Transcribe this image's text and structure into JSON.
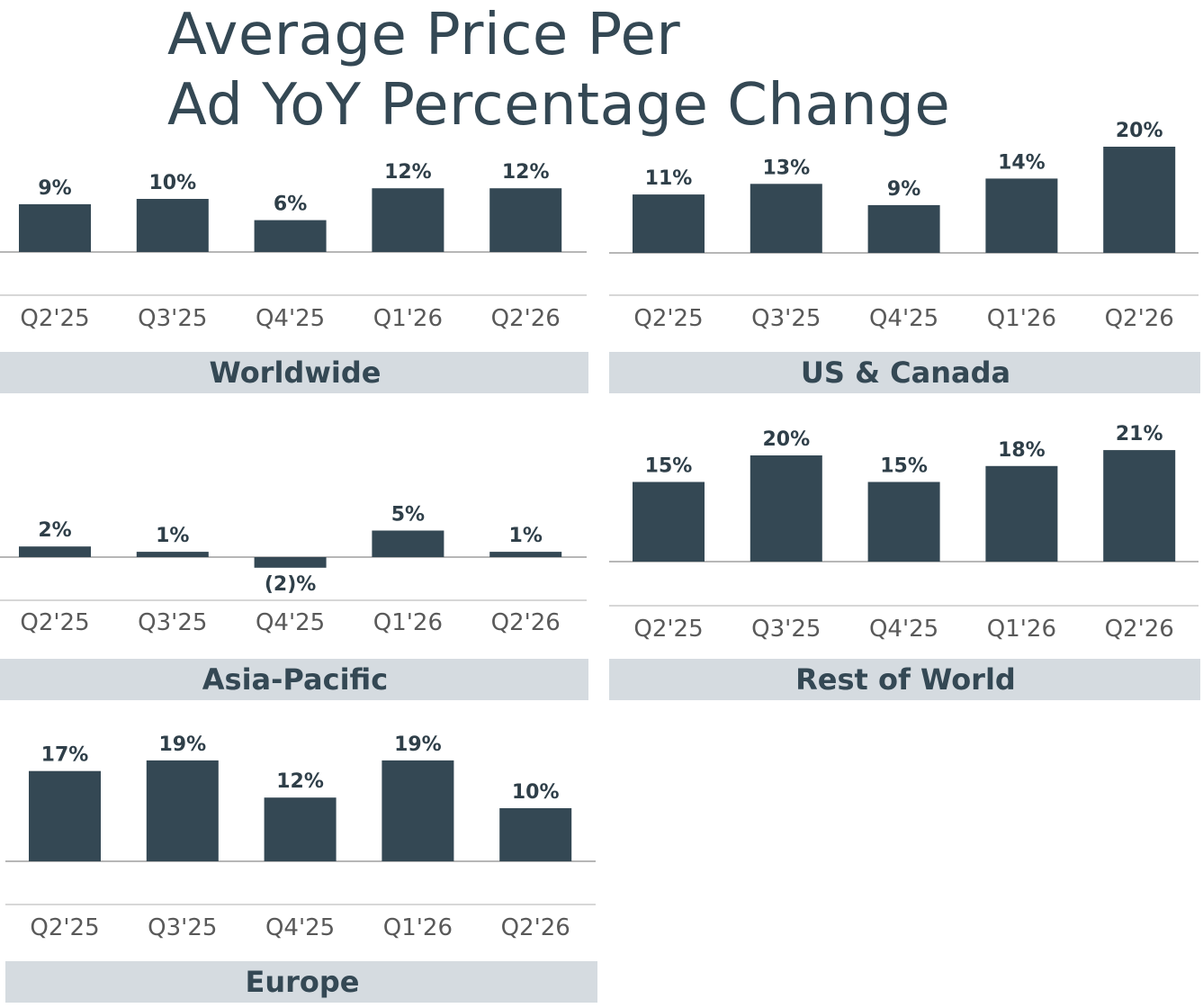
{
  "title": {
    "line1": "Average Price Per",
    "line2": "Ad YoY Percentage Change"
  },
  "colors": {
    "bar": "#344854",
    "text": "#344854",
    "band": "#d5dbe0",
    "axis": "#8c8c8c",
    "category": "#595959"
  },
  "chart_data": [
    {
      "type": "bar",
      "region": "Worldwide",
      "categories": [
        "Q2'25",
        "Q3'25",
        "Q4'25",
        "Q1'26",
        "Q2'26"
      ],
      "values": [
        9,
        10,
        6,
        12,
        12
      ],
      "labels": [
        "9%",
        "10%",
        "6%",
        "12%",
        "12%"
      ]
    },
    {
      "type": "bar",
      "region": "US & Canada",
      "categories": [
        "Q2'25",
        "Q3'25",
        "Q4'25",
        "Q1'26",
        "Q2'26"
      ],
      "values": [
        11,
        13,
        9,
        14,
        20
      ],
      "labels": [
        "11%",
        "13%",
        "9%",
        "14%",
        "20%"
      ]
    },
    {
      "type": "bar",
      "region": "Asia-Pacific",
      "categories": [
        "Q2'25",
        "Q3'25",
        "Q4'25",
        "Q1'26",
        "Q2'26"
      ],
      "values": [
        2,
        1,
        -2,
        5,
        1
      ],
      "labels": [
        "2%",
        "1%",
        "(2)%",
        "5%",
        "1%"
      ]
    },
    {
      "type": "bar",
      "region": "Rest of World",
      "categories": [
        "Q2'25",
        "Q3'25",
        "Q4'25",
        "Q1'26",
        "Q2'26"
      ],
      "values": [
        15,
        20,
        15,
        18,
        21
      ],
      "labels": [
        "15%",
        "20%",
        "15%",
        "18%",
        "21%"
      ]
    },
    {
      "type": "bar",
      "region": "Europe",
      "categories": [
        "Q2'25",
        "Q3'25",
        "Q4'25",
        "Q1'26",
        "Q2'26"
      ],
      "values": [
        17,
        19,
        12,
        19,
        10
      ],
      "labels": [
        "17%",
        "19%",
        "12%",
        "19%",
        "10%"
      ]
    }
  ]
}
